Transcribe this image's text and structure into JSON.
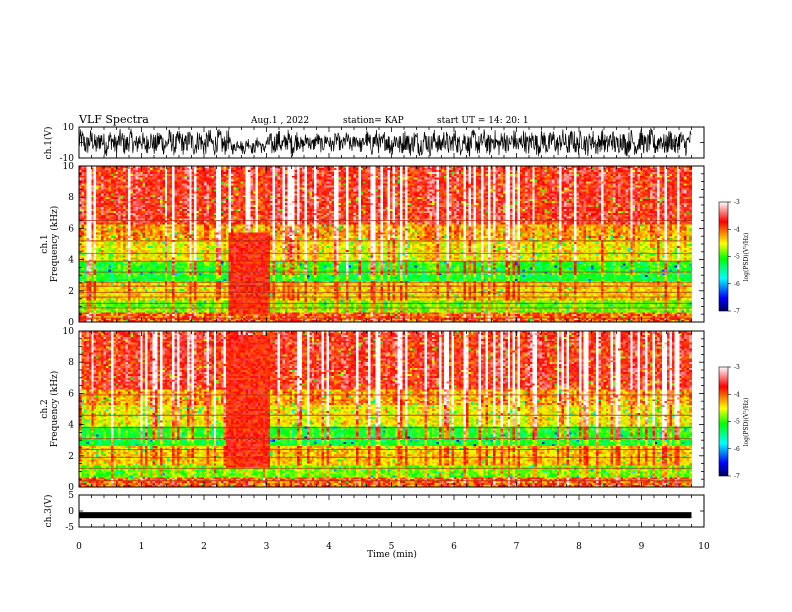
{
  "header": {
    "title": "VLF Spectra",
    "date": "Aug.1  , 2022",
    "station": "station= KAP",
    "start": "start  UT  =   14: 20: 1"
  },
  "chart_data": [
    {
      "type": "line",
      "panel": "ch.1 waveform",
      "ylabel": "ch.1(V)",
      "ylim": [
        -10,
        10
      ],
      "y_ticks": [
        "10",
        "-10"
      ],
      "xlim": [
        0,
        10
      ],
      "data_extent_x": [
        0,
        9.8
      ],
      "series": [
        {
          "values_note_approx_range": [
            -9,
            9
          ]
        }
      ]
    },
    {
      "type": "heatmap",
      "panel": "ch.1 spectrogram",
      "ylabel_line1": "ch.1",
      "ylabel_line2": "Frequency  (kHz)",
      "ylim": [
        0,
        10
      ],
      "y_ticks": [
        "0",
        "2",
        "4",
        "6",
        "8",
        "10"
      ],
      "xlim": [
        0,
        10
      ],
      "data_extent_x": [
        0,
        9.8
      ],
      "colorbar": {
        "label": "log(PSD)(V²/Hz)",
        "ticks": [
          "-3",
          "-4",
          "-5",
          "-6",
          "-7"
        ],
        "range": [
          -7,
          -3
        ],
        "colormap": [
          "#000080",
          "#0000ff",
          "#00ffff",
          "#00ff00",
          "#ffff00",
          "#ff0000",
          "#ffffff"
        ]
      },
      "features": {
        "event_window_min": [
          2.4,
          3.05
        ],
        "event_band_khz": [
          0.5,
          5.8
        ],
        "horizontal_lines_khz": [
          0.25,
          0.9,
          1.2,
          1.6,
          1.9,
          2.3,
          2.55,
          3.2,
          3.9,
          4.4,
          5.2,
          6.5
        ]
      }
    },
    {
      "type": "heatmap",
      "panel": "ch.2 spectrogram",
      "ylabel_line1": "ch.2",
      "ylabel_line2": "Frequency  (kHz)",
      "ylim": [
        0,
        10
      ],
      "y_ticks": [
        "0",
        "2",
        "4",
        "6",
        "8",
        "10"
      ],
      "xlim": [
        0,
        10
      ],
      "data_extent_x": [
        0,
        9.8
      ],
      "colorbar": {
        "label": "log(PSD)(V²/Hz)",
        "ticks": [
          "-3",
          "-4",
          "-5",
          "-6",
          "-7"
        ],
        "range": [
          -7,
          -3
        ],
        "colormap": [
          "#000080",
          "#0000ff",
          "#00ffff",
          "#00ff00",
          "#ffff00",
          "#ff0000",
          "#ffffff"
        ]
      },
      "features": {
        "event_window_min": [
          2.35,
          3.05
        ],
        "event_band_khz": [
          1.2,
          9.8
        ],
        "horizontal_lines_khz": [
          0.4,
          1.2,
          1.9,
          2.4,
          3.1,
          3.8,
          4.6,
          5.9
        ]
      }
    },
    {
      "type": "line",
      "panel": "ch.3 waveform",
      "ylabel": "ch.3(V)",
      "ylim": [
        -5,
        5
      ],
      "y_ticks": [
        "5",
        "0",
        "-5"
      ],
      "xlim": [
        0,
        10
      ],
      "data_extent_x": [
        0,
        9.8
      ],
      "series": [
        {
          "constant_value": -1.3
        }
      ]
    }
  ],
  "x_axis": {
    "label": "Time  (min)",
    "ticks": [
      "0",
      "1",
      "2",
      "3",
      "4",
      "5",
      "6",
      "7",
      "8",
      "9",
      "10"
    ]
  }
}
